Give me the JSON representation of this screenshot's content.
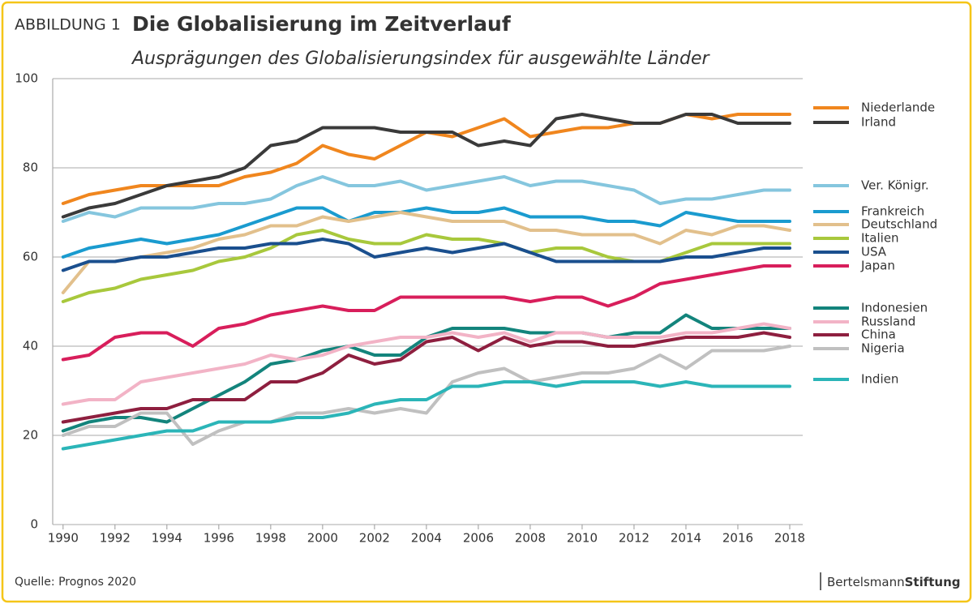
{
  "chart_data": {
    "type": "line",
    "label": "ABBILDUNG 1",
    "title": "Die Globalisierung im Zeitverlauf",
    "subtitle": "Ausprägungen des Globalisierungsindex für ausgewählte Länder",
    "source": "Quelle: Prognos 2020",
    "brand": {
      "light": "Bertelsmann",
      "bold": "Stiftung"
    },
    "x": [
      1990,
      1991,
      1992,
      1993,
      1994,
      1995,
      1996,
      1997,
      1998,
      1999,
      2000,
      2001,
      2002,
      2003,
      2004,
      2005,
      2006,
      2007,
      2008,
      2009,
      2010,
      2011,
      2012,
      2013,
      2014,
      2015,
      2016,
      2017,
      2018
    ],
    "xlim": [
      1989.6,
      2018.5
    ],
    "xticks": [
      1990,
      1992,
      1994,
      1996,
      1998,
      2000,
      2002,
      2004,
      2006,
      2008,
      2010,
      2012,
      2014,
      2016,
      2018
    ],
    "ylim": [
      0,
      100
    ],
    "yticks": [
      0,
      20,
      40,
      60,
      80,
      100
    ],
    "grid": true,
    "series": [
      {
        "name": "Niederlande",
        "color": "#f0861e",
        "values": [
          72,
          74,
          75,
          76,
          76,
          76,
          76,
          78,
          79,
          81,
          85,
          83,
          82,
          85,
          88,
          87,
          89,
          91,
          87,
          88,
          89,
          89,
          90,
          90,
          92,
          91,
          92,
          92,
          92
        ]
      },
      {
        "name": "Irland",
        "color": "#3a3a3a",
        "values": [
          69,
          71,
          72,
          74,
          76,
          77,
          78,
          80,
          85,
          86,
          89,
          89,
          89,
          88,
          88,
          88,
          85,
          86,
          85,
          91,
          92,
          91,
          90,
          90,
          92,
          92,
          90,
          90,
          90
        ]
      },
      {
        "name": "Ver. Königr.",
        "color": "#85c6de",
        "values": [
          68,
          70,
          69,
          71,
          71,
          71,
          72,
          72,
          73,
          76,
          78,
          76,
          76,
          77,
          75,
          76,
          77,
          78,
          76,
          77,
          77,
          76,
          75,
          72,
          73,
          73,
          74,
          75,
          75
        ]
      },
      {
        "name": "Frankreich",
        "color": "#1a9bcf",
        "values": [
          60,
          62,
          63,
          64,
          63,
          64,
          65,
          67,
          69,
          71,
          71,
          68,
          70,
          70,
          71,
          70,
          70,
          71,
          69,
          69,
          69,
          68,
          68,
          67,
          70,
          69,
          68,
          68,
          68
        ]
      },
      {
        "name": "Deutschland",
        "color": "#e2c08c",
        "values": [
          52,
          59,
          59,
          60,
          61,
          62,
          64,
          65,
          67,
          67,
          69,
          68,
          69,
          70,
          69,
          68,
          68,
          68,
          66,
          66,
          65,
          65,
          65,
          63,
          66,
          65,
          67,
          67,
          66
        ]
      },
      {
        "name": "Italien",
        "color": "#a8c83c",
        "values": [
          50,
          52,
          53,
          55,
          56,
          57,
          59,
          60,
          62,
          65,
          66,
          64,
          63,
          63,
          65,
          64,
          64,
          63,
          61,
          62,
          62,
          60,
          59,
          59,
          61,
          63,
          63,
          63,
          63
        ]
      },
      {
        "name": "USA",
        "color": "#1a4f8e",
        "values": [
          57,
          59,
          59,
          60,
          60,
          61,
          62,
          62,
          63,
          63,
          64,
          63,
          60,
          61,
          62,
          61,
          62,
          63,
          61,
          59,
          59,
          59,
          59,
          59,
          60,
          60,
          61,
          62,
          62
        ]
      },
      {
        "name": "Japan",
        "color": "#d81e5b",
        "values": [
          37,
          38,
          42,
          43,
          43,
          40,
          44,
          45,
          47,
          48,
          49,
          48,
          48,
          51,
          51,
          51,
          51,
          51,
          50,
          51,
          51,
          49,
          51,
          54,
          55,
          56,
          57,
          58,
          58
        ]
      },
      {
        "name": "Indonesien",
        "color": "#13847c",
        "values": [
          21,
          23,
          24,
          24,
          23,
          26,
          29,
          32,
          36,
          37,
          39,
          40,
          38,
          38,
          42,
          44,
          44,
          44,
          43,
          43,
          43,
          42,
          43,
          43,
          47,
          44,
          44,
          44,
          44
        ]
      },
      {
        "name": "Russland",
        "color": "#f2b3c6",
        "values": [
          27,
          28,
          28,
          32,
          33,
          34,
          35,
          36,
          38,
          37,
          38,
          40,
          41,
          42,
          42,
          43,
          42,
          43,
          41,
          43,
          43,
          42,
          42,
          42,
          43,
          43,
          44,
          45,
          44
        ]
      },
      {
        "name": "China",
        "color": "#8e1f3f",
        "values": [
          23,
          24,
          25,
          26,
          26,
          28,
          28,
          28,
          32,
          32,
          34,
          38,
          36,
          37,
          41,
          42,
          39,
          42,
          40,
          41,
          41,
          40,
          40,
          41,
          42,
          42,
          42,
          43,
          42
        ]
      },
      {
        "name": "Nigeria",
        "color": "#c0c0c0",
        "values": [
          20,
          22,
          22,
          25,
          25,
          18,
          21,
          23,
          23,
          25,
          25,
          26,
          25,
          26,
          25,
          32,
          34,
          35,
          32,
          33,
          34,
          34,
          35,
          38,
          35,
          39,
          39,
          39,
          40
        ]
      },
      {
        "name": "Indien",
        "color": "#2bb5b8",
        "values": [
          17,
          18,
          19,
          20,
          21,
          21,
          23,
          23,
          23,
          24,
          24,
          25,
          27,
          28,
          28,
          31,
          31,
          32,
          32,
          31,
          32,
          32,
          32,
          31,
          32,
          31,
          31,
          31,
          31
        ]
      }
    ]
  }
}
